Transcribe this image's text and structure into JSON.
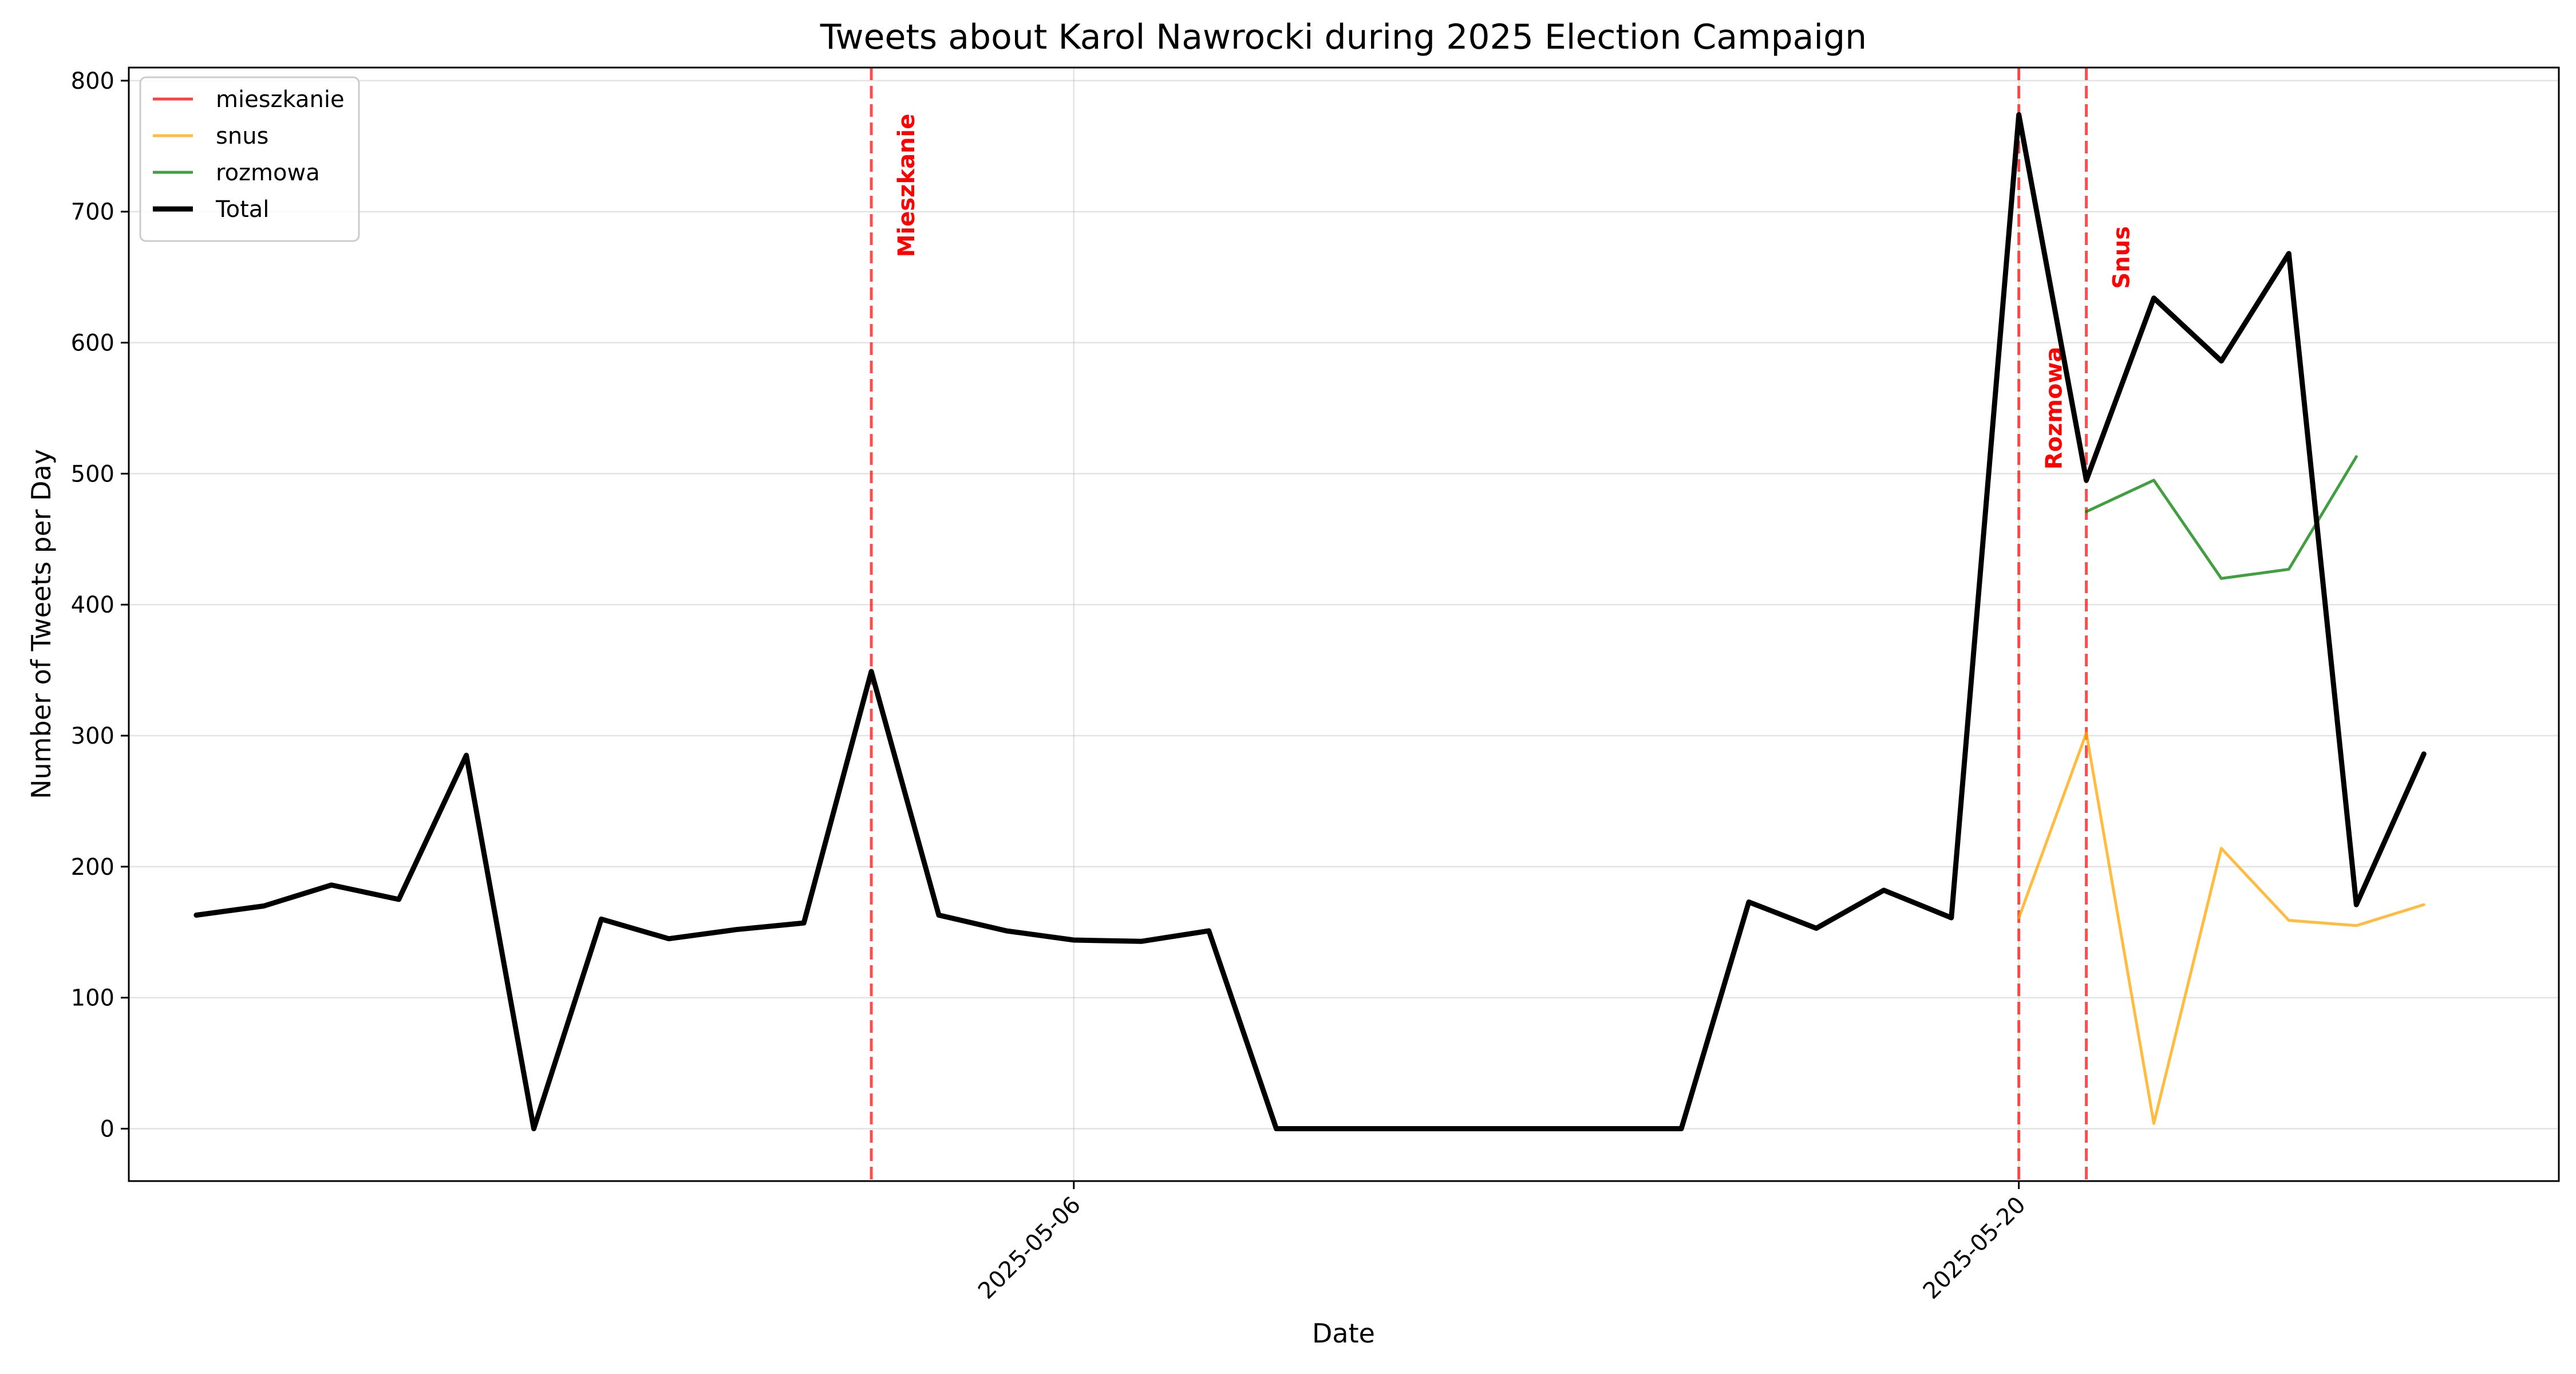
{
  "chart_data": {
    "type": "line",
    "title": "Tweets about Karol Nawrocki during 2025 Election Campaign",
    "xlabel": "Date",
    "ylabel": "Number of Tweets per Day",
    "xlim": [
      "2025-04-22",
      "2025-05-28"
    ],
    "ylim": [
      -40,
      810
    ],
    "x_ticks": [
      "2025-05-06",
      "2025-05-20"
    ],
    "y_ticks": [
      0,
      100,
      200,
      300,
      400,
      500,
      600,
      700,
      800
    ],
    "grid": true,
    "legend_position": "upper-left",
    "series": [
      {
        "name": "mieszkanie",
        "color": "#ff0000",
        "points": []
      },
      {
        "name": "snus",
        "color": "#ffa500",
        "points": [
          {
            "x": "2025-05-20",
            "y": 161
          },
          {
            "x": "2025-05-21",
            "y": 302
          },
          {
            "x": "2025-05-22",
            "y": 4
          },
          {
            "x": "2025-05-23",
            "y": 214
          },
          {
            "x": "2025-05-24",
            "y": 159
          },
          {
            "x": "2025-05-25",
            "y": 155
          },
          {
            "x": "2025-05-26",
            "y": 171
          }
        ]
      },
      {
        "name": "rozmowa",
        "color": "#008000",
        "points": [
          {
            "x": "2025-05-21",
            "y": 471
          },
          {
            "x": "2025-05-22",
            "y": 495
          },
          {
            "x": "2025-05-23",
            "y": 420
          },
          {
            "x": "2025-05-24",
            "y": 427
          },
          {
            "x": "2025-05-25",
            "y": 513
          }
        ]
      },
      {
        "name": "Total",
        "color": "#000000",
        "points": [
          {
            "x": "2025-04-23",
            "y": 163
          },
          {
            "x": "2025-04-24",
            "y": 170
          },
          {
            "x": "2025-04-25",
            "y": 186
          },
          {
            "x": "2025-04-26",
            "y": 175
          },
          {
            "x": "2025-04-27",
            "y": 285
          },
          {
            "x": "2025-04-28",
            "y": 0
          },
          {
            "x": "2025-04-29",
            "y": 160
          },
          {
            "x": "2025-04-30",
            "y": 145
          },
          {
            "x": "2025-05-01",
            "y": 152
          },
          {
            "x": "2025-05-02",
            "y": 157
          },
          {
            "x": "2025-05-03",
            "y": 349
          },
          {
            "x": "2025-05-04",
            "y": 163
          },
          {
            "x": "2025-05-05",
            "y": 151
          },
          {
            "x": "2025-05-06",
            "y": 144
          },
          {
            "x": "2025-05-07",
            "y": 143
          },
          {
            "x": "2025-05-08",
            "y": 151
          },
          {
            "x": "2025-05-09",
            "y": 0
          },
          {
            "x": "2025-05-10",
            "y": 0
          },
          {
            "x": "2025-05-11",
            "y": 0
          },
          {
            "x": "2025-05-12",
            "y": 0
          },
          {
            "x": "2025-05-13",
            "y": 0
          },
          {
            "x": "2025-05-14",
            "y": 0
          },
          {
            "x": "2025-05-15",
            "y": 0
          },
          {
            "x": "2025-05-16",
            "y": 173
          },
          {
            "x": "2025-05-17",
            "y": 153
          },
          {
            "x": "2025-05-18",
            "y": 182
          },
          {
            "x": "2025-05-19",
            "y": 161
          },
          {
            "x": "2025-05-20",
            "y": 774
          },
          {
            "x": "2025-05-21",
            "y": 495
          },
          {
            "x": "2025-05-22",
            "y": 634
          },
          {
            "x": "2025-05-23",
            "y": 586
          },
          {
            "x": "2025-05-24",
            "y": 668
          },
          {
            "x": "2025-05-25",
            "y": 171
          },
          {
            "x": "2025-05-26",
            "y": 286
          }
        ]
      }
    ],
    "events": [
      {
        "label": "Mieszkanie",
        "x": "2025-05-03",
        "label_y": 720
      },
      {
        "label": "Rozmowa",
        "x": "2025-05-20",
        "label_y": 550
      },
      {
        "label": "Snus",
        "x": "2025-05-21",
        "label_y": 665
      }
    ]
  }
}
